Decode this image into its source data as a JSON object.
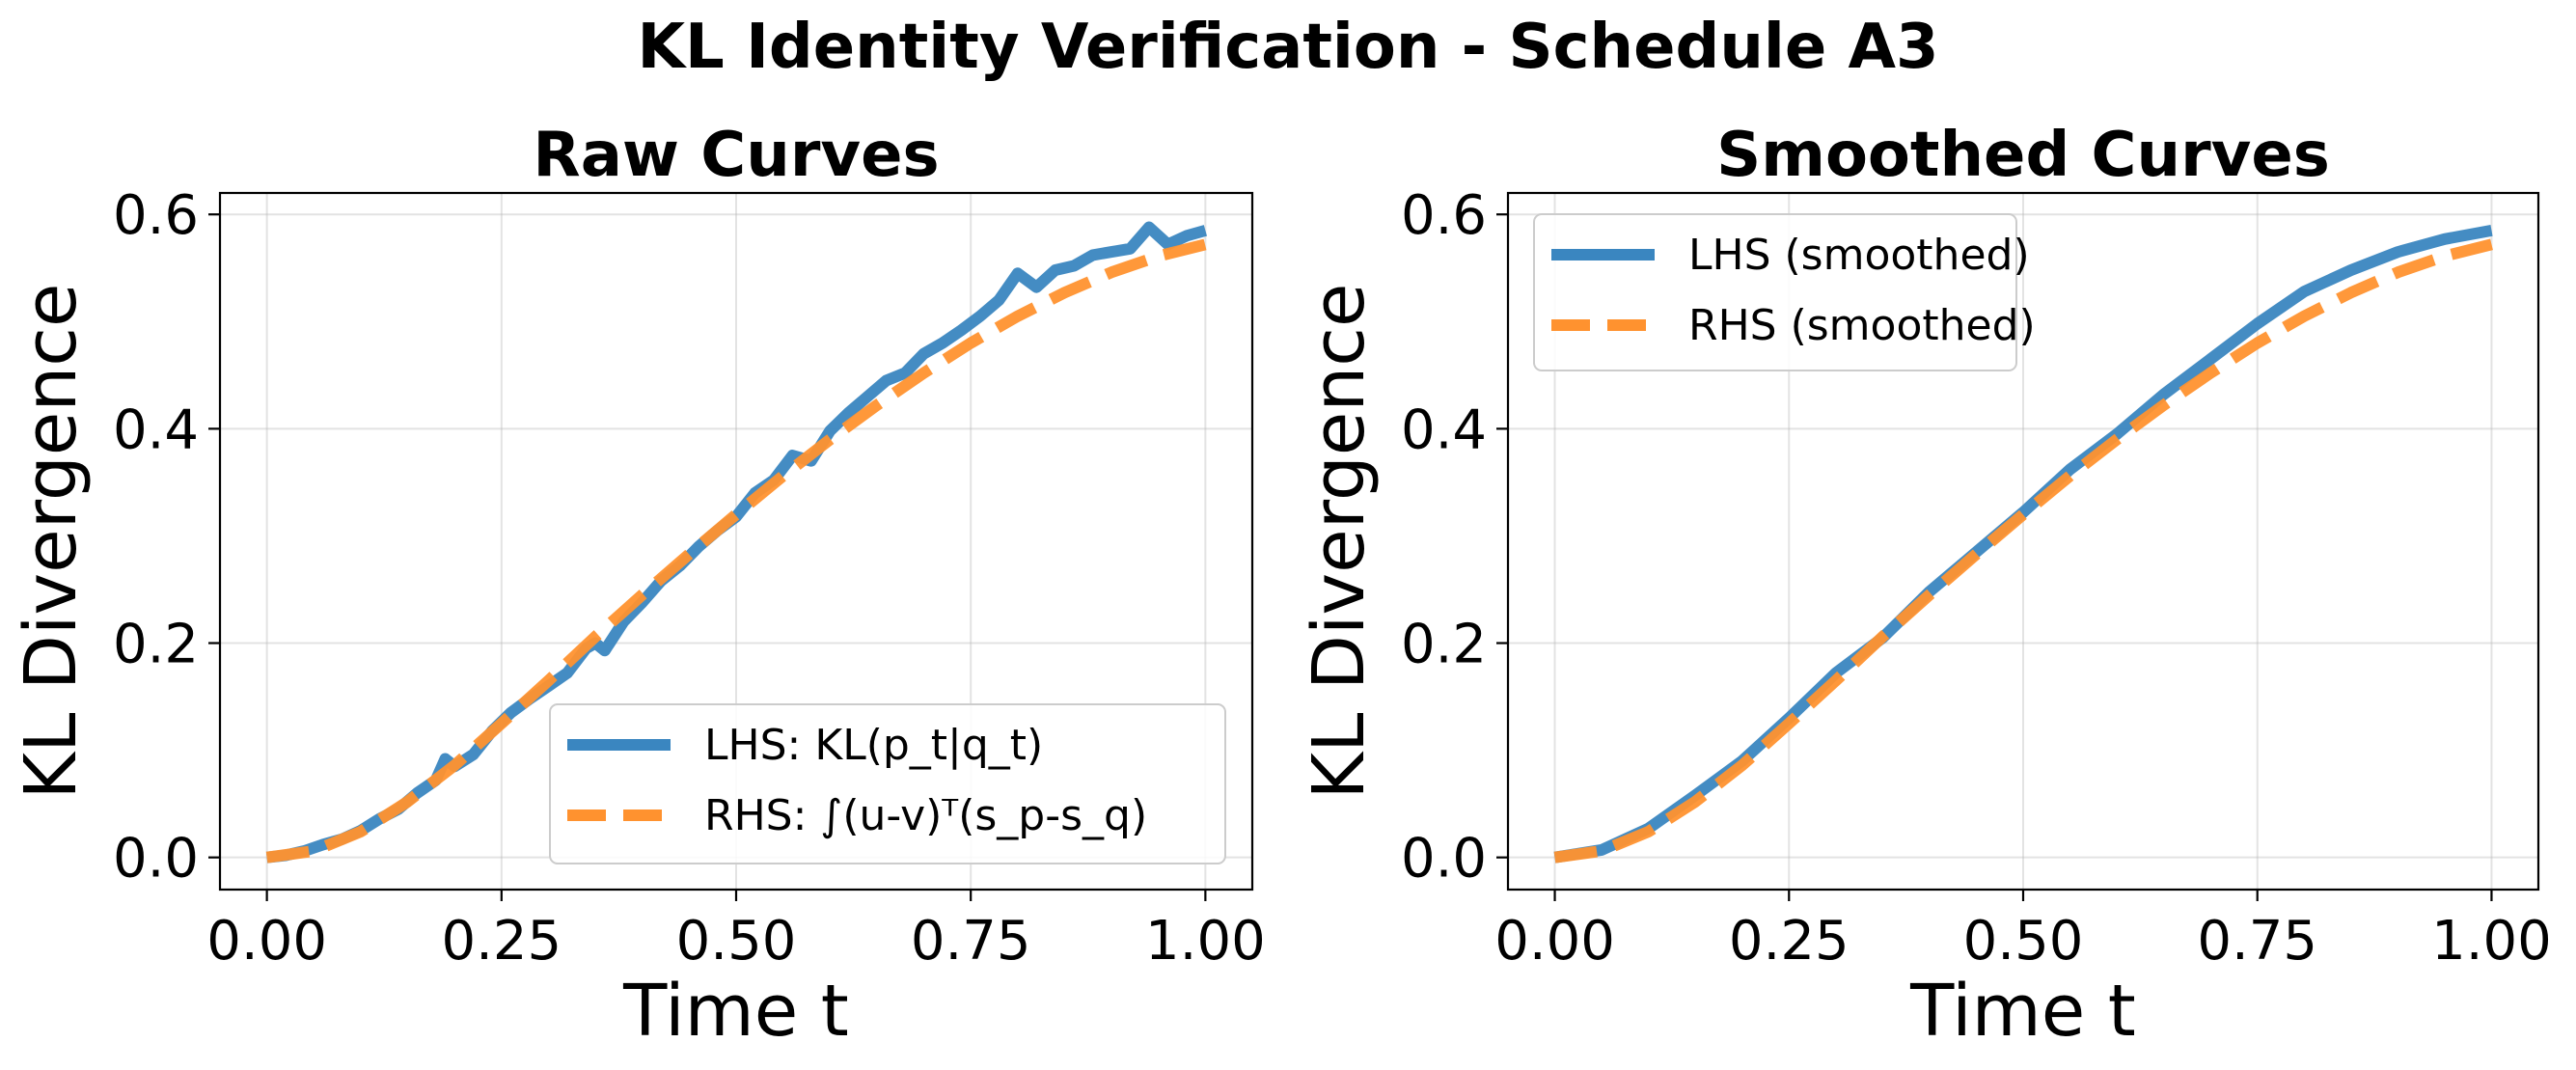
{
  "figure": {
    "suptitle": "KL Identity Verification - Schedule A3"
  },
  "colors": {
    "lhs": "#3a86c0",
    "rhs": "#ff922f"
  },
  "chart_data": [
    {
      "type": "line",
      "title": "Raw Curves",
      "xlabel": "Time t",
      "ylabel": "KL Divergence",
      "xlim": [
        -0.05,
        1.05
      ],
      "ylim": [
        -0.03,
        0.62
      ],
      "xticks": [
        "0.00",
        "0.25",
        "0.50",
        "0.75",
        "1.00"
      ],
      "yticks": [
        "0.0",
        "0.2",
        "0.4",
        "0.6"
      ],
      "grid": true,
      "legend": "lower-right",
      "series": [
        {
          "name": "LHS: KL(p_t|q_t)",
          "style": "solid",
          "x": [
            0.0,
            0.02,
            0.04,
            0.06,
            0.08,
            0.1,
            0.12,
            0.14,
            0.16,
            0.18,
            0.19,
            0.2,
            0.22,
            0.24,
            0.26,
            0.28,
            0.3,
            0.32,
            0.34,
            0.35,
            0.36,
            0.38,
            0.4,
            0.42,
            0.44,
            0.46,
            0.48,
            0.5,
            0.52,
            0.54,
            0.56,
            0.58,
            0.6,
            0.62,
            0.64,
            0.66,
            0.68,
            0.7,
            0.72,
            0.74,
            0.76,
            0.78,
            0.8,
            0.82,
            0.84,
            0.86,
            0.88,
            0.9,
            0.92,
            0.94,
            0.96,
            0.98,
            1.0
          ],
          "values": [
            0.0,
            0.002,
            0.006,
            0.012,
            0.017,
            0.025,
            0.036,
            0.045,
            0.06,
            0.072,
            0.092,
            0.085,
            0.096,
            0.118,
            0.135,
            0.148,
            0.16,
            0.172,
            0.195,
            0.2,
            0.193,
            0.22,
            0.238,
            0.258,
            0.272,
            0.29,
            0.305,
            0.318,
            0.34,
            0.352,
            0.375,
            0.37,
            0.398,
            0.415,
            0.43,
            0.445,
            0.452,
            0.47,
            0.48,
            0.492,
            0.505,
            0.52,
            0.545,
            0.532,
            0.548,
            0.552,
            0.562,
            0.565,
            0.568,
            0.588,
            0.572,
            0.58,
            0.585
          ]
        },
        {
          "name": "RHS: ∫(u-v)ᵀ(s_p-s_q)",
          "style": "dashed",
          "x": [
            0.0,
            0.05,
            0.1,
            0.15,
            0.2,
            0.25,
            0.3,
            0.35,
            0.4,
            0.45,
            0.5,
            0.55,
            0.6,
            0.65,
            0.7,
            0.75,
            0.8,
            0.85,
            0.9,
            0.95,
            1.0
          ],
          "values": [
            0.0,
            0.006,
            0.024,
            0.052,
            0.086,
            0.125,
            0.165,
            0.206,
            0.245,
            0.283,
            0.32,
            0.356,
            0.39,
            0.422,
            0.452,
            0.48,
            0.505,
            0.527,
            0.546,
            0.561,
            0.572
          ]
        }
      ]
    },
    {
      "type": "line",
      "title": "Smoothed Curves",
      "xlabel": "Time t",
      "ylabel": "KL Divergence",
      "xlim": [
        -0.05,
        1.05
      ],
      "ylim": [
        -0.03,
        0.62
      ],
      "xticks": [
        "0.00",
        "0.25",
        "0.50",
        "0.75",
        "1.00"
      ],
      "yticks": [
        "0.0",
        "0.2",
        "0.4",
        "0.6"
      ],
      "grid": true,
      "legend": "upper-left",
      "series": [
        {
          "name": "LHS (smoothed)",
          "style": "solid",
          "x": [
            0.0,
            0.05,
            0.1,
            0.15,
            0.2,
            0.25,
            0.3,
            0.35,
            0.4,
            0.45,
            0.5,
            0.55,
            0.6,
            0.65,
            0.7,
            0.75,
            0.8,
            0.85,
            0.9,
            0.95,
            1.0
          ],
          "values": [
            0.0,
            0.007,
            0.027,
            0.058,
            0.09,
            0.13,
            0.172,
            0.205,
            0.248,
            0.285,
            0.322,
            0.362,
            0.395,
            0.432,
            0.465,
            0.498,
            0.528,
            0.548,
            0.565,
            0.577,
            0.585
          ]
        },
        {
          "name": "RHS (smoothed)",
          "style": "dashed",
          "x": [
            0.0,
            0.05,
            0.1,
            0.15,
            0.2,
            0.25,
            0.3,
            0.35,
            0.4,
            0.45,
            0.5,
            0.55,
            0.6,
            0.65,
            0.7,
            0.75,
            0.8,
            0.85,
            0.9,
            0.95,
            1.0
          ],
          "values": [
            0.0,
            0.006,
            0.024,
            0.052,
            0.086,
            0.125,
            0.165,
            0.206,
            0.245,
            0.283,
            0.32,
            0.356,
            0.39,
            0.422,
            0.452,
            0.48,
            0.505,
            0.527,
            0.546,
            0.561,
            0.572
          ]
        }
      ]
    }
  ]
}
